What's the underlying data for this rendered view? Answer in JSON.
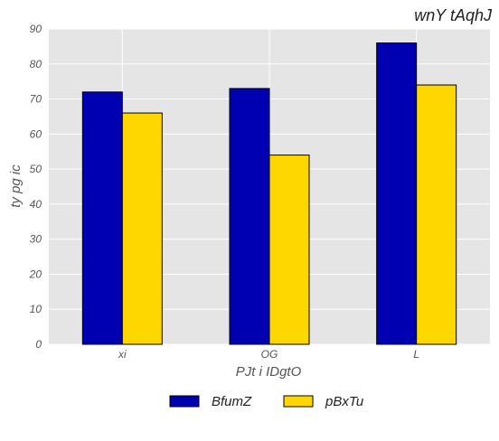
{
  "chart_data": {
    "type": "bar",
    "title": "wnY tAqhJ",
    "xlabel": "PJt i IDgtO",
    "ylabel": "ty pg ic",
    "categories": [
      "xi",
      "OG",
      "L"
    ],
    "series": [
      {
        "name": "BfumZ",
        "values": [
          72,
          73,
          86
        ],
        "color": "#0000b3"
      },
      {
        "name": "pBxTu",
        "values": [
          66,
          54,
          74
        ],
        "color": "#ffd700"
      }
    ],
    "ylim": [
      0,
      90
    ],
    "yticks": [
      0,
      10,
      20,
      30,
      40,
      50,
      60,
      70,
      80,
      90
    ],
    "grid": true,
    "legend_position": "bottom-center"
  },
  "colors": {
    "plot_background": "#e5e5e5",
    "grid": "#ffffff",
    "text": "#555555"
  }
}
